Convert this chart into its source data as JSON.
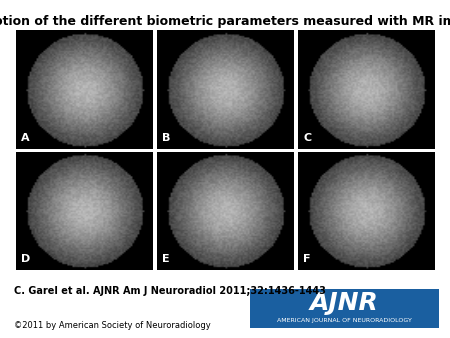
{
  "title": "Description of the different biometric parameters measured with MR imaging.",
  "title_fontsize": 9,
  "citation": "C. Garel et al. AJNR Am J Neuroradiol 2011;32:1436-1443",
  "citation_fontsize": 7,
  "copyright": "©2011 by American Society of Neuroradiology",
  "copyright_fontsize": 6,
  "background_color": "#ffffff",
  "panel_labels": [
    "A",
    "B",
    "C",
    "D",
    "E",
    "F"
  ],
  "panel_label_color": "#ffffff",
  "panel_label_fontsize": 8,
  "grid_rows": 2,
  "grid_cols": 3,
  "image_bg": "#1a1a1a",
  "ajnr_box_color": "#1a5fa0",
  "ajnr_text": "AJNR",
  "ajnr_subtext": "AMERICAN JOURNAL OF NEURORADIOLOGY",
  "ajnr_text_color": "#ffffff",
  "ajnr_text_fontsize": 18,
  "ajnr_subtext_fontsize": 4.5
}
